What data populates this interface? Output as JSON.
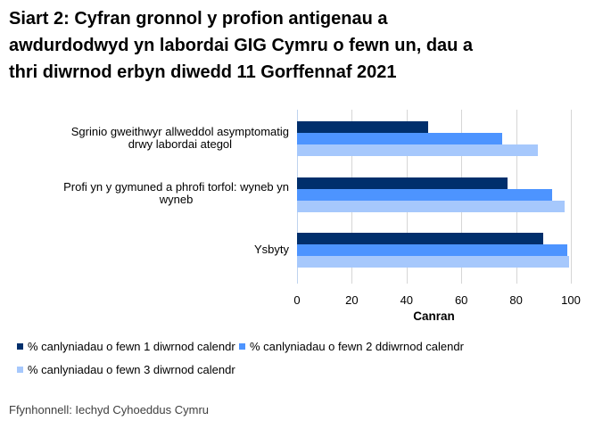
{
  "title": "Siart 2: Cyfran gronnol y profion antigenau a awdurdodwyd yn labordai GIG Cymru o fewn un, dau a thri diwrnod erbyn diwedd 11 Gorffennaf 2021",
  "title_lines": [
    "Siart 2: Cyfran gronnol y profion antigenau a",
    "awdurdodwyd yn labordai GIG Cymru o fewn un, dau a",
    "thri diwrnod erbyn diwedd 11 Gorffennaf 2021"
  ],
  "chart_data": {
    "type": "bar",
    "orientation": "horizontal",
    "categories": [
      "Sgrinio gweithwyr allweddol asymptomatig drwy labordai ategol",
      "Profi yn y gymuned a phrofi torfol: wyneb yn wyneb",
      "Ysbyty"
    ],
    "categories_lines": [
      [
        "Sgrinio gweithwyr allweddol asymptomatig",
        "drwy labordai ategol"
      ],
      [
        "Profi yn y gymuned a phrofi torfol: wyneb yn",
        "wyneb"
      ],
      [
        "Ysbyty"
      ]
    ],
    "series": [
      {
        "name": "% canlyniadau o fewn 1 diwrnod calendr",
        "color": "#002f6c",
        "values": [
          48,
          77,
          90
        ]
      },
      {
        "name": "% canlyniadau o fewn 2 ddiwrnod calendr",
        "color": "#4d94ff",
        "values": [
          75,
          93,
          98.7
        ]
      },
      {
        "name": "% canlyniadau o fewn 3 diwrnod calendr",
        "color": "#a6c8fc",
        "values": [
          88,
          97.8,
          99.5
        ]
      }
    ],
    "xlabel": "Canran",
    "xlim": [
      0,
      100
    ],
    "xticks": [
      0,
      20,
      40,
      60,
      80,
      100
    ],
    "grid": true,
    "legend_position": "bottom",
    "colors": {
      "gridline": "#d6d6d6",
      "axis_line": "#bfd4ee"
    }
  },
  "footer": {
    "source": "Ffynhonnell: Iechyd Cyhoeddus Cymru"
  }
}
